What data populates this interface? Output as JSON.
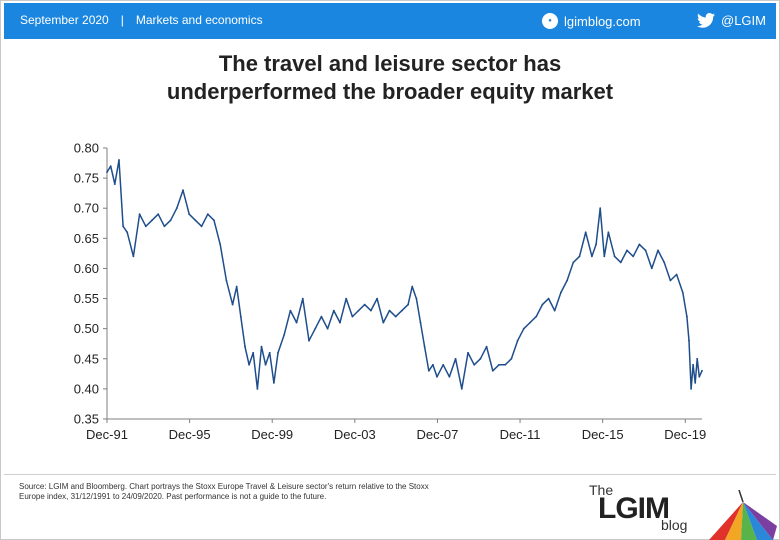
{
  "header": {
    "date": "September 2020",
    "separator": "|",
    "category": "Markets and economics",
    "site": "lgimblog.com",
    "twitter": "@LGIM",
    "bar_color": "#1a86e0"
  },
  "title": {
    "line1": "The travel and leisure sector has",
    "line2": "underperformed the broader equity market"
  },
  "chart_data": {
    "type": "line",
    "title": "The travel and leisure sector has underperformed the broader equity market",
    "xlabel": "",
    "ylabel": "",
    "x_tick_labels": [
      "Dec-91",
      "Dec-95",
      "Dec-99",
      "Dec-03",
      "Dec-07",
      "Dec-11",
      "Dec-15",
      "Dec-19"
    ],
    "y_tick_labels": [
      "0.80",
      "0.75",
      "0.70",
      "0.65",
      "0.60",
      "0.55",
      "0.50",
      "0.45",
      "0.40",
      "0.35"
    ],
    "ylim": [
      0.35,
      0.8
    ],
    "xlim": [
      1991.92,
      2020.73
    ],
    "grid": false,
    "legend": "none",
    "line_color": "#1f4e8c",
    "series": [
      {
        "x": [
          1991.92,
          1992.1,
          1992.3,
          1992.5,
          1992.7,
          1992.9,
          1993.2,
          1993.5,
          1993.8,
          1994.1,
          1994.4,
          1994.7,
          1995.0,
          1995.3,
          1995.6,
          1995.9,
          1996.2,
          1996.5,
          1996.8,
          1997.1,
          1997.4,
          1997.7,
          1998.0,
          1998.2,
          1998.4,
          1998.6,
          1998.8,
          1999.0,
          1999.2,
          1999.4,
          1999.6,
          1999.8,
          2000.0,
          2000.2,
          2000.5,
          2000.8,
          2001.1,
          2001.4,
          2001.7,
          2002.0,
          2002.3,
          2002.6,
          2002.9,
          2003.2,
          2003.5,
          2003.8,
          2004.1,
          2004.4,
          2004.7,
          2005.0,
          2005.3,
          2005.6,
          2005.9,
          2006.2,
          2006.5,
          2006.7,
          2006.9,
          2007.1,
          2007.3,
          2007.5,
          2007.7,
          2007.9,
          2008.2,
          2008.5,
          2008.8,
          2009.1,
          2009.4,
          2009.7,
          2010.0,
          2010.3,
          2010.6,
          2010.9,
          2011.2,
          2011.5,
          2011.8,
          2012.1,
          2012.4,
          2012.7,
          2013.0,
          2013.3,
          2013.6,
          2013.9,
          2014.2,
          2014.5,
          2014.8,
          2015.1,
          2015.4,
          2015.6,
          2015.8,
          2016.0,
          2016.2,
          2016.5,
          2016.8,
          2017.1,
          2017.4,
          2017.7,
          2018.0,
          2018.3,
          2018.6,
          2018.9,
          2019.2,
          2019.5,
          2019.8,
          2020.0,
          2020.1,
          2020.2,
          2020.3,
          2020.4,
          2020.5,
          2020.6,
          2020.73
        ],
        "y": [
          0.76,
          0.77,
          0.74,
          0.78,
          0.67,
          0.66,
          0.62,
          0.69,
          0.67,
          0.68,
          0.69,
          0.67,
          0.68,
          0.7,
          0.73,
          0.69,
          0.68,
          0.67,
          0.69,
          0.68,
          0.64,
          0.58,
          0.54,
          0.57,
          0.52,
          0.47,
          0.44,
          0.46,
          0.4,
          0.47,
          0.44,
          0.46,
          0.41,
          0.46,
          0.49,
          0.53,
          0.51,
          0.55,
          0.48,
          0.5,
          0.52,
          0.5,
          0.53,
          0.51,
          0.55,
          0.52,
          0.53,
          0.54,
          0.53,
          0.55,
          0.51,
          0.53,
          0.52,
          0.53,
          0.54,
          0.57,
          0.55,
          0.51,
          0.47,
          0.43,
          0.44,
          0.42,
          0.44,
          0.42,
          0.45,
          0.4,
          0.46,
          0.44,
          0.45,
          0.47,
          0.43,
          0.44,
          0.44,
          0.45,
          0.48,
          0.5,
          0.51,
          0.52,
          0.54,
          0.55,
          0.53,
          0.56,
          0.58,
          0.61,
          0.62,
          0.66,
          0.62,
          0.64,
          0.7,
          0.62,
          0.66,
          0.62,
          0.61,
          0.63,
          0.62,
          0.64,
          0.63,
          0.6,
          0.63,
          0.61,
          0.58,
          0.59,
          0.56,
          0.52,
          0.48,
          0.4,
          0.44,
          0.41,
          0.45,
          0.42,
          0.43
        ]
      }
    ]
  },
  "footer": {
    "source": "Source: LGIM and Bloomberg. Chart portrays the Stoxx Europe Travel & Leisure sector's return relative to the Stoxx Europe index, 31/12/1991 to 24/09/2020. Past performance is not a guide to the future.",
    "logo_the": "The",
    "logo_lgim": "LGIM",
    "logo_blog": "blog"
  }
}
